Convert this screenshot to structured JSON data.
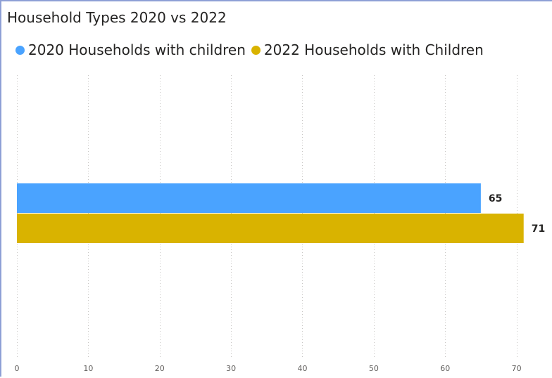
{
  "chart_data": {
    "type": "bar",
    "orientation": "horizontal",
    "title": "Household Types 2020 vs 2022",
    "categories": [
      ""
    ],
    "series": [
      {
        "name": "2020 Households with children",
        "values": [
          65
        ],
        "color": "#4aa3ff"
      },
      {
        "name": "2022 Households with Children",
        "values": [
          71
        ],
        "color": "#d9b300"
      }
    ],
    "xlim": [
      0,
      73
    ],
    "x_ticks": [
      0,
      10,
      20,
      30,
      40,
      50,
      60,
      70
    ],
    "grid": "vertical-dotted",
    "legend_position": "top-left",
    "data_labels": [
      "65",
      "71"
    ]
  }
}
